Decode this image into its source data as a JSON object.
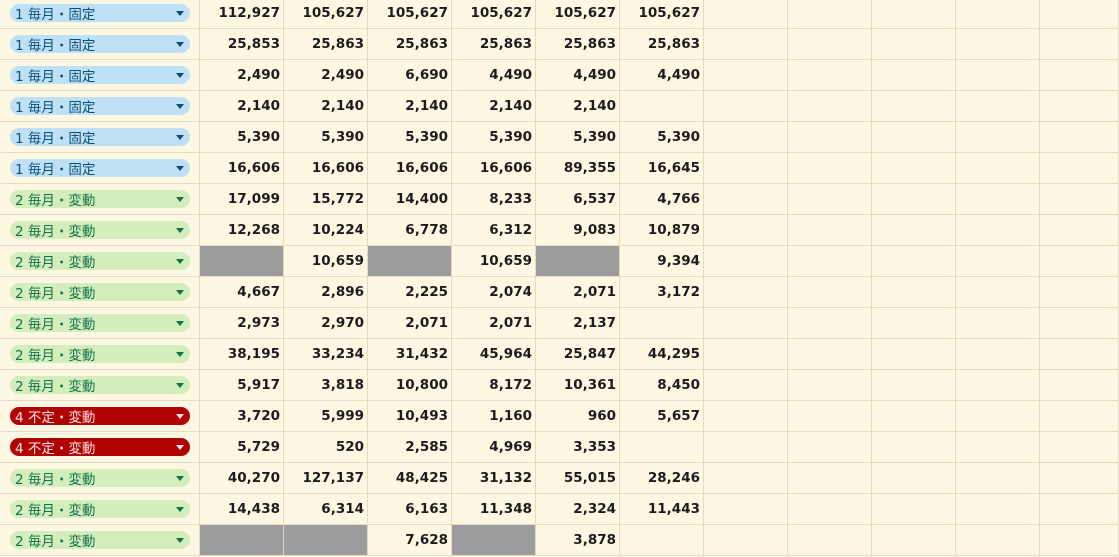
{
  "rows": [
    {
      "category": "1 毎月・固定",
      "color": "blue",
      "values": [
        "112,927",
        "105,627",
        "105,627",
        "105,627",
        "105,627",
        "105,627"
      ],
      "gray": [
        false,
        false,
        false,
        false,
        false,
        false
      ]
    },
    {
      "category": "1 毎月・固定",
      "color": "blue",
      "values": [
        "25,853",
        "25,863",
        "25,863",
        "25,863",
        "25,863",
        "25,863"
      ],
      "gray": [
        false,
        false,
        false,
        false,
        false,
        false
      ]
    },
    {
      "category": "1 毎月・固定",
      "color": "blue",
      "values": [
        "2,490",
        "2,490",
        "6,690",
        "4,490",
        "4,490",
        "4,490"
      ],
      "gray": [
        false,
        false,
        false,
        false,
        false,
        false
      ]
    },
    {
      "category": "1 毎月・固定",
      "color": "blue",
      "values": [
        "2,140",
        "2,140",
        "2,140",
        "2,140",
        "2,140",
        ""
      ],
      "gray": [
        false,
        false,
        false,
        false,
        false,
        false
      ]
    },
    {
      "category": "1 毎月・固定",
      "color": "blue",
      "values": [
        "5,390",
        "5,390",
        "5,390",
        "5,390",
        "5,390",
        "5,390"
      ],
      "gray": [
        false,
        false,
        false,
        false,
        false,
        false
      ]
    },
    {
      "category": "1 毎月・固定",
      "color": "blue",
      "values": [
        "16,606",
        "16,606",
        "16,606",
        "16,606",
        "89,355",
        "16,645"
      ],
      "gray": [
        false,
        false,
        false,
        false,
        false,
        false
      ]
    },
    {
      "category": "2 毎月・変動",
      "color": "green",
      "values": [
        "17,099",
        "15,772",
        "14,400",
        "8,233",
        "6,537",
        "4,766"
      ],
      "gray": [
        false,
        false,
        false,
        false,
        false,
        false
      ]
    },
    {
      "category": "2 毎月・変動",
      "color": "green",
      "values": [
        "12,268",
        "10,224",
        "6,778",
        "6,312",
        "9,083",
        "10,879"
      ],
      "gray": [
        false,
        false,
        false,
        false,
        false,
        false
      ]
    },
    {
      "category": "2 毎月・変動",
      "color": "green",
      "values": [
        "",
        "10,659",
        "",
        "10,659",
        "",
        "9,394"
      ],
      "gray": [
        true,
        false,
        true,
        false,
        true,
        false
      ]
    },
    {
      "category": "2 毎月・変動",
      "color": "green",
      "values": [
        "4,667",
        "2,896",
        "2,225",
        "2,074",
        "2,071",
        "3,172"
      ],
      "gray": [
        false,
        false,
        false,
        false,
        false,
        false
      ]
    },
    {
      "category": "2 毎月・変動",
      "color": "green",
      "values": [
        "2,973",
        "2,970",
        "2,071",
        "2,071",
        "2,137",
        ""
      ],
      "gray": [
        false,
        false,
        false,
        false,
        false,
        false
      ]
    },
    {
      "category": "2 毎月・変動",
      "color": "green",
      "values": [
        "38,195",
        "33,234",
        "31,432",
        "45,964",
        "25,847",
        "44,295"
      ],
      "gray": [
        false,
        false,
        false,
        false,
        false,
        false
      ]
    },
    {
      "category": "2 毎月・変動",
      "color": "green",
      "values": [
        "5,917",
        "3,818",
        "10,800",
        "8,172",
        "10,361",
        "8,450"
      ],
      "gray": [
        false,
        false,
        false,
        false,
        false,
        false
      ]
    },
    {
      "category": "4 不定・変動",
      "color": "red",
      "values": [
        "3,720",
        "5,999",
        "10,493",
        "1,160",
        "960",
        "5,657"
      ],
      "gray": [
        false,
        false,
        false,
        false,
        false,
        false
      ]
    },
    {
      "category": "4 不定・変動",
      "color": "red",
      "values": [
        "5,729",
        "520",
        "2,585",
        "4,969",
        "3,353",
        ""
      ],
      "gray": [
        false,
        false,
        false,
        false,
        false,
        false
      ]
    },
    {
      "category": "2 毎月・変動",
      "color": "green",
      "values": [
        "40,270",
        "127,137",
        "48,425",
        "31,132",
        "55,015",
        "28,246"
      ],
      "gray": [
        false,
        false,
        false,
        false,
        false,
        false
      ]
    },
    {
      "category": "2 毎月・変動",
      "color": "green",
      "values": [
        "14,438",
        "6,314",
        "6,163",
        "11,348",
        "2,324",
        "11,443"
      ],
      "gray": [
        false,
        false,
        false,
        false,
        false,
        false
      ]
    },
    {
      "category": "2 毎月・変動",
      "color": "green",
      "values": [
        "",
        "",
        "7,628",
        "",
        "3,878",
        ""
      ],
      "gray": [
        true,
        true,
        false,
        true,
        false,
        false
      ]
    }
  ],
  "empty_columns": 5
}
